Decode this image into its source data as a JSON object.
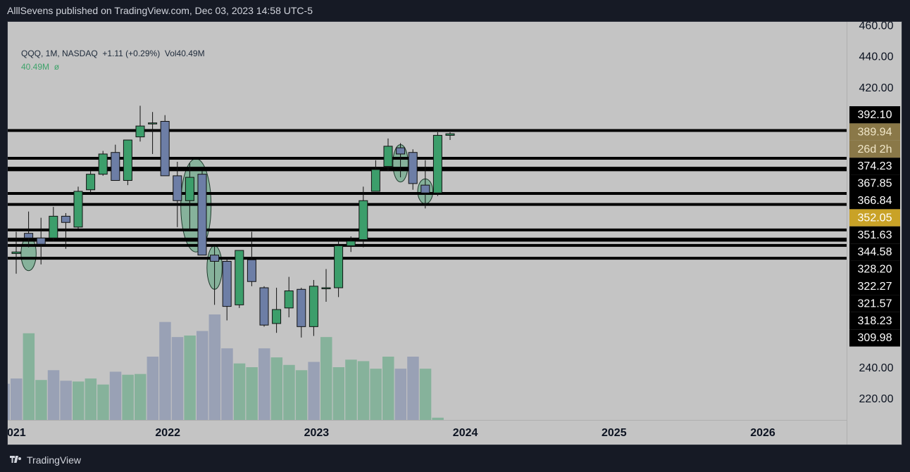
{
  "header": {
    "attribution": "AlllSevens published on TradingView.com, Dec 03, 2023 14:58 UTC-5"
  },
  "footer": {
    "brand": "TradingView",
    "logo_icon": "tradingview-logo-icon"
  },
  "legend": {
    "symbol": "QQQ, 1M, NASDAQ",
    "change": "+1.11 (+0.29%)",
    "volume": "Vol40.49M",
    "vol_value": "40.49M",
    "vol_extra": "ø"
  },
  "colors": {
    "background": "#c4c4c4",
    "up": "#3c9e6b",
    "down": "#6d7ea6",
    "level_line": "#000000",
    "gold": "#c9a227",
    "gold_dark": "#8a7848"
  },
  "chart_data": {
    "type": "candlestick",
    "symbol": "QQQ",
    "interval": "1M",
    "ylim": [
      206,
      462
    ],
    "y_ticks": [
      460,
      440,
      420,
      240,
      220
    ],
    "y_tick_labels": [
      "460.00",
      "440.00",
      "420.00",
      "240.00",
      "220.00"
    ],
    "x_tick_labels": [
      {
        "label": "021",
        "month": 0
      },
      {
        "label": "2022",
        "month": 12
      },
      {
        "label": "2023",
        "month": 24
      },
      {
        "label": "2024",
        "month": 36
      },
      {
        "label": "2025",
        "month": 48
      },
      {
        "label": "2026",
        "month": 60
      }
    ],
    "candles": [
      {
        "month": 0,
        "open": 313,
        "high": 327,
        "low": 300,
        "close": 314
      },
      {
        "month": 1,
        "open": 326,
        "high": 340,
        "low": 317,
        "close": 323
      },
      {
        "month": 2,
        "open": 323,
        "high": 336,
        "low": 306,
        "close": 319
      },
      {
        "month": 3,
        "open": 323,
        "high": 343,
        "low": 321,
        "close": 337
      },
      {
        "month": 4,
        "open": 337,
        "high": 339,
        "low": 316,
        "close": 333
      },
      {
        "month": 5,
        "open": 330,
        "high": 356,
        "low": 329,
        "close": 353
      },
      {
        "month": 6,
        "open": 354,
        "high": 366,
        "low": 352,
        "close": 364
      },
      {
        "month": 7,
        "open": 364,
        "high": 379,
        "low": 363,
        "close": 377
      },
      {
        "month": 8,
        "open": 378,
        "high": 383,
        "low": 360,
        "close": 360
      },
      {
        "month": 9,
        "open": 360,
        "high": 385,
        "low": 357,
        "close": 386
      },
      {
        "month": 10,
        "open": 388,
        "high": 408,
        "low": 385,
        "close": 395
      },
      {
        "month": 11,
        "open": 397,
        "high": 404,
        "low": 377,
        "close": 397
      },
      {
        "month": 12,
        "open": 398,
        "high": 402,
        "low": 363,
        "close": 363
      },
      {
        "month": 13,
        "open": 363,
        "high": 372,
        "low": 330,
        "close": 347
      },
      {
        "month": 14,
        "open": 347,
        "high": 371,
        "low": 328,
        "close": 362
      },
      {
        "month": 15,
        "open": 364,
        "high": 366,
        "low": 313,
        "close": 312
      },
      {
        "month": 16,
        "open": 312,
        "high": 318,
        "low": 280,
        "close": 308
      },
      {
        "month": 17,
        "open": 308,
        "high": 310,
        "low": 270,
        "close": 279
      },
      {
        "month": 18,
        "open": 280,
        "high": 315,
        "low": 278,
        "close": 315
      },
      {
        "month": 19,
        "open": 309,
        "high": 327,
        "low": 292,
        "close": 295
      },
      {
        "month": 20,
        "open": 291,
        "high": 292,
        "low": 266,
        "close": 267
      },
      {
        "month": 21,
        "open": 268,
        "high": 291,
        "low": 262,
        "close": 277
      },
      {
        "month": 22,
        "open": 278,
        "high": 298,
        "low": 272,
        "close": 289
      },
      {
        "month": 23,
        "open": 290,
        "high": 291,
        "low": 259,
        "close": 266
      },
      {
        "month": 24,
        "open": 266,
        "high": 296,
        "low": 260,
        "close": 292
      },
      {
        "month": 25,
        "open": 291,
        "high": 303,
        "low": 282,
        "close": 291
      },
      {
        "month": 26,
        "open": 291,
        "high": 322,
        "low": 285,
        "close": 318
      },
      {
        "month": 27,
        "open": 318,
        "high": 324,
        "low": 314,
        "close": 321
      },
      {
        "month": 28,
        "open": 322,
        "high": 356,
        "low": 317,
        "close": 347
      },
      {
        "month": 29,
        "open": 353,
        "high": 373,
        "low": 353,
        "close": 367
      },
      {
        "month": 30,
        "open": 369,
        "high": 387,
        "low": 366,
        "close": 382
      },
      {
        "month": 31,
        "open": 381,
        "high": 384,
        "low": 362,
        "close": 377
      },
      {
        "month": 32,
        "open": 378,
        "high": 380,
        "low": 354,
        "close": 358
      },
      {
        "month": 33,
        "open": 357,
        "high": 373,
        "low": 342,
        "close": 352
      },
      {
        "month": 34,
        "open": 352,
        "high": 391,
        "low": 350,
        "close": 389
      },
      {
        "month": 35,
        "open": 389,
        "high": 391,
        "low": 386,
        "close": 390
      }
    ],
    "volume": [
      {
        "month": -1,
        "value": 48,
        "dir": "down"
      },
      {
        "month": 0,
        "value": 55,
        "dir": "down"
      },
      {
        "month": 1,
        "value": 115,
        "dir": "up"
      },
      {
        "month": 2,
        "value": 53,
        "dir": "up"
      },
      {
        "month": 3,
        "value": 66,
        "dir": "down"
      },
      {
        "month": 4,
        "value": 52,
        "dir": "down"
      },
      {
        "month": 5,
        "value": 51,
        "dir": "up"
      },
      {
        "month": 6,
        "value": 55,
        "dir": "up"
      },
      {
        "month": 7,
        "value": 47,
        "dir": "up"
      },
      {
        "month": 8,
        "value": 64,
        "dir": "down"
      },
      {
        "month": 9,
        "value": 60,
        "dir": "up"
      },
      {
        "month": 10,
        "value": 61,
        "dir": "up"
      },
      {
        "month": 11,
        "value": 84,
        "dir": "down"
      },
      {
        "month": 12,
        "value": 130,
        "dir": "down"
      },
      {
        "month": 13,
        "value": 110,
        "dir": "down"
      },
      {
        "month": 14,
        "value": 112,
        "dir": "up"
      },
      {
        "month": 15,
        "value": 118,
        "dir": "down"
      },
      {
        "month": 16,
        "value": 140,
        "dir": "down"
      },
      {
        "month": 17,
        "value": 95,
        "dir": "down"
      },
      {
        "month": 18,
        "value": 75,
        "dir": "up"
      },
      {
        "month": 19,
        "value": 70,
        "dir": "up"
      },
      {
        "month": 20,
        "value": 95,
        "dir": "down"
      },
      {
        "month": 21,
        "value": 83,
        "dir": "up"
      },
      {
        "month": 22,
        "value": 73,
        "dir": "up"
      },
      {
        "month": 23,
        "value": 66,
        "dir": "up"
      },
      {
        "month": 24,
        "value": 77,
        "dir": "down"
      },
      {
        "month": 25,
        "value": 110,
        "dir": "up"
      },
      {
        "month": 26,
        "value": 70,
        "dir": "up"
      },
      {
        "month": 27,
        "value": 80,
        "dir": "up"
      },
      {
        "month": 28,
        "value": 78,
        "dir": "up"
      },
      {
        "month": 29,
        "value": 68,
        "dir": "up"
      },
      {
        "month": 30,
        "value": 84,
        "dir": "up"
      },
      {
        "month": 31,
        "value": 68,
        "dir": "down"
      },
      {
        "month": 32,
        "value": 84,
        "dir": "down"
      },
      {
        "month": 33,
        "value": 68,
        "dir": "up"
      },
      {
        "month": 34,
        "value": 3,
        "dir": "up"
      }
    ],
    "horizontal_levels": [
      392.1,
      374.23,
      367.85,
      366.84,
      351.63,
      344.58,
      328.2,
      322.27,
      321.57,
      318.23,
      309.98
    ],
    "price_labels": [
      {
        "text": "392.10",
        "style": "black"
      },
      {
        "text": "389.94",
        "style": "gold-dark"
      },
      {
        "text": "26d 2h",
        "style": "gold-dark"
      },
      {
        "text": "374.23",
        "style": "black"
      },
      {
        "text": "367.85",
        "style": "black"
      },
      {
        "text": "366.84",
        "style": "black"
      },
      {
        "text": "352.05",
        "style": "gold"
      },
      {
        "text": "351.63",
        "style": "black"
      },
      {
        "text": "344.58",
        "style": "black"
      },
      {
        "text": "328.20",
        "style": "black"
      },
      {
        "text": "322.27",
        "style": "black"
      },
      {
        "text": "321.57",
        "style": "black"
      },
      {
        "text": "318.23",
        "style": "black"
      },
      {
        "text": "309.98",
        "style": "black"
      }
    ],
    "highlight_ellipses": [
      {
        "month": 1,
        "price": 313,
        "rx": 0.55,
        "ry_price": 11
      },
      {
        "month": 14,
        "price": 344,
        "rx": 1.1,
        "ry_price": 30
      },
      {
        "month": 16,
        "price": 304,
        "rx": 0.55,
        "ry_price": 14
      },
      {
        "month": 31,
        "price": 371,
        "rx": 0.55,
        "ry_price": 12
      },
      {
        "month": 33,
        "price": 353,
        "rx": 0.55,
        "ry_price": 8
      }
    ]
  }
}
